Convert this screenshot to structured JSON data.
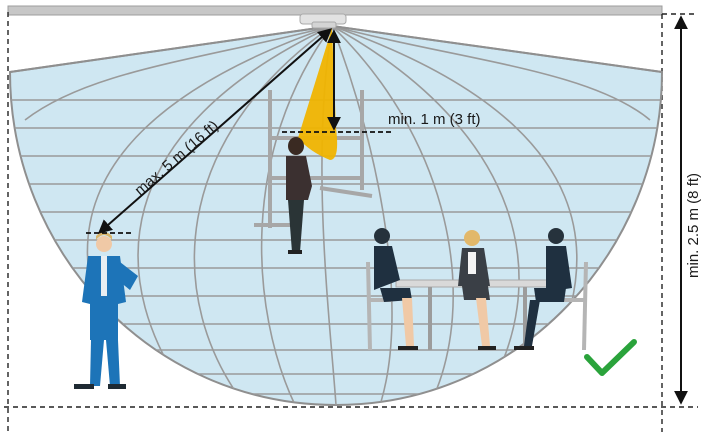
{
  "labels": {
    "max_distance": "max. 5 m (16 ft)",
    "min_distance": "min. 1 m (3 ft)",
    "min_height": "min. 2.5 m (8 ft)"
  },
  "colors": {
    "dome_fill": "#cfe7f2",
    "grid": "#9a9a9a",
    "cone": "#f0b400",
    "ceiling": "#c7c7c7",
    "check": "#2aa33b",
    "suit": "#1d74b8",
    "dark_suit": "#1f3040"
  },
  "icons": {
    "sensor": "ceiling-sensor-icon",
    "check": "checkmark-icon"
  }
}
